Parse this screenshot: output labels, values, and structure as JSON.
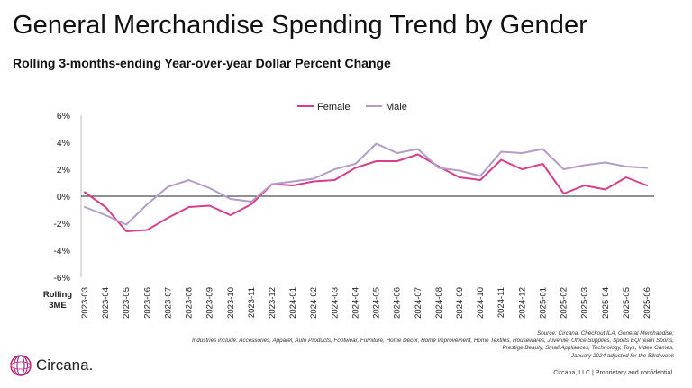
{
  "header": {
    "title": "General Merchandise Spending Trend by Gender",
    "subtitle": "Rolling 3-months-ending Year-over-year Dollar Percent Change"
  },
  "chart_data": {
    "type": "line",
    "x": [
      "2023-03",
      "2023-04",
      "2023-05",
      "2023-06",
      "2023-07",
      "2023-08",
      "2023-09",
      "2023-10",
      "2023-11",
      "2023-12",
      "2024-01",
      "2024-02",
      "2024-03",
      "2024-04",
      "2024-05",
      "2024-06",
      "2024-07",
      "2024-08",
      "2024-09",
      "2024-10",
      "2024-11",
      "2024-12",
      "2025-01",
      "2025-02",
      "2025-03",
      "2025-04",
      "2025-05",
      "2025-06"
    ],
    "series": [
      {
        "name": "Female",
        "color": "#d6408a",
        "values": [
          0.3,
          -0.8,
          -2.6,
          -2.5,
          -1.6,
          -0.8,
          -0.7,
          -1.4,
          -0.6,
          0.9,
          0.8,
          1.1,
          1.2,
          2.1,
          2.6,
          2.6,
          3.1,
          2.2,
          1.4,
          1.2,
          2.7,
          2.0,
          2.4,
          0.2,
          0.8,
          0.5,
          1.4,
          0.8
        ]
      },
      {
        "name": "Male",
        "color": "#b39cc9",
        "values": [
          -0.8,
          -1.4,
          -2.1,
          -0.6,
          0.7,
          1.2,
          0.6,
          -0.2,
          -0.4,
          0.9,
          1.1,
          1.3,
          2.0,
          2.4,
          3.9,
          3.2,
          3.5,
          2.1,
          1.9,
          1.5,
          3.3,
          3.2,
          3.5,
          2.0,
          2.3,
          2.5,
          2.2,
          2.1
        ]
      }
    ],
    "y_ticks": [
      "6%",
      "4%",
      "2%",
      "0%",
      "-2%",
      "-4%",
      "-6%"
    ],
    "ylim": [
      -6,
      6
    ],
    "x_axis_label": [
      "Rolling",
      "3ME"
    ],
    "legend_position": "top-center",
    "grid": false,
    "zero_line": true
  },
  "source_lines": [
    "Source: Circana, Checkout ILA, General Merchandise;",
    "Industries include: Accessories, Apparel, Auto Products, Footwear, Furniture, Home Décor, Home Improvement, Home Textiles, Housewares, Juvenile, Office Supplies, Sports EQ/Team Sports,",
    "Prestige Beauty, Small Appliances, Technology, Toys, Video Games,",
    "January 2024 adjusted for the 53rd week"
  ],
  "brand": {
    "name": "Circana.",
    "accent": "#c2185b"
  },
  "footer": {
    "confidential": "Circana, LLC | Proprietary and confidential"
  }
}
